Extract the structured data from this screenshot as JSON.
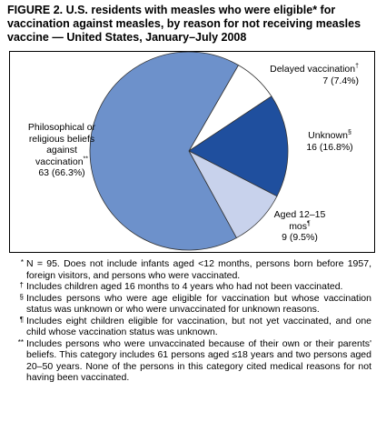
{
  "chart_data": {
    "type": "pie",
    "title": "FIGURE 2. U.S. residents with measles who were eligible* for vaccination against measles, by reason for not receiving measles vaccine — United States, January–July 2008",
    "categories": [
      "Delayed vaccination",
      "Unknown",
      "Aged 12–15 mos",
      "Philosophical or religious beliefs against vaccination"
    ],
    "markers": [
      "†",
      "§",
      "¶",
      "**"
    ],
    "values": [
      7,
      16,
      9,
      63
    ],
    "value_labels": [
      "7 (7.4%)",
      "16 (16.8%)",
      "9 (9.5%)",
      "63 (66.3%)"
    ],
    "colors": [
      "#ffffff",
      "#1f4f9e",
      "#c8d2ec",
      "#6d91cb"
    ]
  },
  "footnotes": [
    {
      "marker": "*",
      "text": "N = 95. Does not include infants aged <12 months, persons born before 1957, foreign visitors, and persons who were vaccinated."
    },
    {
      "marker": "†",
      "text": "Includes children aged 16 months to 4 years who had not been vaccinated."
    },
    {
      "marker": "§",
      "text": "Includes persons who were age eligible for vaccination but whose vaccination status was unknown or who were unvaccinated for unknown reasons."
    },
    {
      "marker": "¶",
      "text": "Includes eight children eligible for vaccination, but not yet vaccinated, and one child whose vaccination status was unknown."
    },
    {
      "marker": "**",
      "text": "Includes persons who were unvaccinated because of their own or their parents' beliefs. This category includes 61 persons aged ≤18 years and two persons aged 20–50 years. None of the persons in this category cited medical reasons for not having been vaccinated."
    }
  ]
}
